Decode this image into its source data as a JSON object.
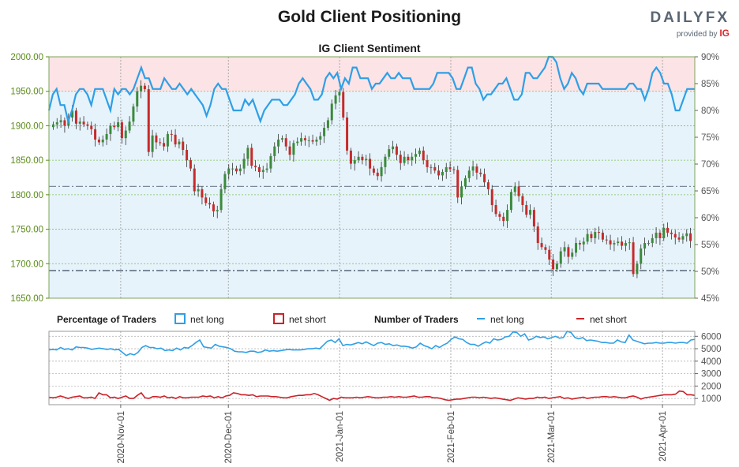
{
  "header": {
    "title": "Gold Client Positioning",
    "subtitle": "IG Client Sentiment",
    "logo_text": "DAILYFX",
    "logo_tagline": "provided by",
    "logo_brand": "IG"
  },
  "colors": {
    "long": "#2f9fe6",
    "short": "#cc2229",
    "price_axis": "#5a8a18",
    "bull_candle": "#3b8a3b",
    "bear_candle": "#c72a2a",
    "long_zone": "#e6f3fb",
    "short_zone": "#fbe3e6"
  },
  "legend": {
    "pct_label": "Percentage of Traders",
    "pct_long": "net long",
    "pct_short": "net short",
    "num_label": "Number of Traders",
    "num_long": "net long",
    "num_short": "net short"
  },
  "chart_data": [
    {
      "type": "candlestick",
      "description_axes": "left: price, right: percent net long",
      "x_ticks": [
        "2020-Nov-01",
        "2020-Dec-01",
        "2021-Jan-01",
        "2021-Feb-01",
        "2021-Mar-01",
        "2021-Apr-01"
      ],
      "y_left_ticks": [
        "1650.00",
        "1700.00",
        "1750.00",
        "1800.00",
        "1850.00",
        "1900.00",
        "1950.00",
        "2000.00"
      ],
      "y_left_range": [
        1650,
        2000
      ],
      "y_right_ticks": [
        "45%",
        "50%",
        "55%",
        "60%",
        "65%",
        "70%",
        "75%",
        "80%",
        "85%",
        "90%"
      ],
      "y_right_range": [
        45,
        90
      ],
      "x_range": [
        "2020-10-12",
        "2021-04-10"
      ],
      "reference_lines": [
        {
          "value": 1812,
          "style": "dash-dot"
        },
        {
          "value": 1690,
          "style": "dash-dot"
        }
      ],
      "price_close": [
        1902,
        1905,
        1908,
        1900,
        1912,
        1922,
        1903,
        1906,
        1902,
        1900,
        1895,
        1880,
        1876,
        1880,
        1888,
        1900,
        1898,
        1905,
        1882,
        1893,
        1906,
        1928,
        1950,
        1958,
        1953,
        1862,
        1886,
        1876,
        1875,
        1870,
        1888,
        1887,
        1873,
        1877,
        1865,
        1850,
        1838,
        1805,
        1808,
        1796,
        1788,
        1786,
        1776,
        1778,
        1808,
        1830,
        1838,
        1838,
        1834,
        1838,
        1852,
        1868,
        1842,
        1840,
        1833,
        1836,
        1838,
        1856,
        1870,
        1880,
        1882,
        1870,
        1858,
        1875,
        1877,
        1882,
        1879,
        1879,
        1877,
        1880,
        1885,
        1897,
        1908,
        1932,
        1944,
        1949,
        1912,
        1864,
        1845,
        1850,
        1855,
        1850,
        1852,
        1838,
        1832,
        1827,
        1840,
        1855,
        1866,
        1870,
        1858,
        1846,
        1855,
        1850,
        1855,
        1859,
        1864,
        1850,
        1840,
        1840,
        1835,
        1828,
        1833,
        1840,
        1837,
        1836,
        1796,
        1812,
        1824,
        1835,
        1841,
        1832,
        1830,
        1818,
        1808,
        1785,
        1772,
        1768,
        1762,
        1778,
        1804,
        1812,
        1798,
        1785,
        1771,
        1778,
        1754,
        1730,
        1724,
        1720,
        1706,
        1692,
        1700,
        1718,
        1724,
        1710,
        1716,
        1730,
        1728,
        1732,
        1743,
        1737,
        1746,
        1745,
        1735,
        1734,
        1728,
        1730,
        1732,
        1726,
        1730,
        1731,
        1685,
        1700,
        1722,
        1730,
        1730,
        1737,
        1745,
        1737,
        1752,
        1745,
        1743,
        1738,
        1735,
        1740,
        1744,
        1733
      ],
      "percent_long": [
        80,
        83,
        84,
        81,
        81,
        78,
        80,
        83,
        84,
        84,
        83,
        81,
        84,
        84,
        84,
        82,
        80,
        84,
        83,
        84,
        84,
        83,
        84,
        86,
        88,
        86,
        86,
        84,
        84,
        84,
        86,
        85,
        84,
        84,
        85,
        84,
        83,
        84,
        83,
        82,
        81,
        79,
        81,
        84,
        85,
        84,
        84,
        82,
        80,
        80,
        80,
        82,
        81,
        82,
        80,
        78,
        80,
        81,
        82,
        82,
        82,
        81,
        81,
        82,
        83,
        85,
        86,
        85,
        84,
        82,
        82,
        83,
        86,
        87,
        86,
        87,
        84,
        86,
        85,
        88,
        88,
        86,
        86,
        86,
        84,
        85,
        85,
        86,
        87,
        86,
        86,
        87,
        86,
        86,
        86,
        84,
        84,
        84,
        84,
        84,
        85,
        87,
        87,
        87,
        87,
        86,
        84,
        84,
        86,
        88,
        88,
        85,
        84,
        82,
        83,
        83,
        84,
        85,
        85,
        86,
        84,
        82,
        82,
        83,
        87,
        87,
        86,
        86,
        87,
        88,
        90,
        90,
        89,
        86,
        84,
        85,
        87,
        86,
        84,
        83,
        85,
        85,
        85,
        85,
        84,
        84,
        84,
        84,
        84,
        84,
        84,
        85,
        85,
        84,
        84,
        82,
        84,
        87,
        88,
        87,
        85,
        85,
        83,
        80,
        80,
        82,
        84,
        84,
        84
      ]
    },
    {
      "type": "line",
      "description_axes": "number of traders",
      "y_ticks": [
        "1000",
        "2000",
        "3000",
        "4000",
        "5000",
        "6000"
      ],
      "y_range": [
        500,
        6400
      ],
      "series": [
        {
          "name": "net long",
          "values": [
            4900,
            4950,
            4900,
            5100,
            4950,
            5000,
            4900,
            5150,
            5100,
            5100,
            5050,
            4950,
            5000,
            5050,
            5000,
            4950,
            5000,
            4900,
            4950,
            4700,
            4450,
            4600,
            4500,
            4700,
            5100,
            5250,
            5100,
            5100,
            5000,
            5050,
            4850,
            4900,
            4850,
            5050,
            4900,
            5100,
            5050,
            5250,
            5500,
            5700,
            5150,
            5100,
            5050,
            5350,
            5200,
            5150,
            5100,
            5000,
            4800,
            4750,
            4750,
            4700,
            4800,
            4800,
            4700,
            4750,
            4900,
            4800,
            4850,
            4800,
            4850,
            4900,
            4950,
            4900,
            4900,
            4900,
            4950,
            5000,
            5000,
            5050,
            5000,
            5300,
            5600,
            5700,
            5500,
            5800,
            5250,
            5350,
            5300,
            5400,
            5500,
            5400,
            5550,
            5400,
            5250,
            5450,
            5500,
            5350,
            5400,
            5250,
            5300,
            5200,
            5200,
            5150,
            5050,
            5150,
            5450,
            5250,
            5150,
            5000,
            5250,
            5100,
            5300,
            5450,
            5750,
            5950,
            5800,
            5750,
            5500,
            5350,
            5350,
            5200,
            5400,
            5550,
            5450,
            5800,
            5700,
            5750,
            5950,
            6000,
            6350,
            6300,
            6000,
            6200,
            5700,
            5800,
            6000,
            5900,
            5950,
            5800,
            5900,
            6000,
            5850,
            5900,
            6400,
            6300,
            5900,
            5800,
            5900,
            5650,
            5700,
            5650,
            5600,
            5500,
            5500,
            5450,
            5450,
            5700,
            5550,
            5500,
            6100,
            5700,
            5600,
            5500,
            5400,
            5450,
            5450,
            5500,
            5450,
            5450,
            5500,
            5500,
            5450,
            5500,
            5500,
            5450,
            5700,
            5750
          ]
        },
        {
          "name": "net short",
          "values": [
            1100,
            1050,
            1100,
            1200,
            1100,
            1000,
            1100,
            1150,
            1200,
            1050,
            1050,
            1100,
            1000,
            1450,
            1300,
            1300,
            1050,
            1100,
            1000,
            1100,
            1200,
            1000,
            1000,
            1250,
            1450,
            1050,
            1000,
            1150,
            1150,
            1100,
            1200,
            1050,
            1100,
            1000,
            1150,
            1050,
            1050,
            1100,
            1100,
            1100,
            1200,
            1150,
            1200,
            1050,
            1150,
            1050,
            1200,
            1250,
            1450,
            1400,
            1300,
            1300,
            1250,
            1300,
            1150,
            1200,
            1200,
            1200,
            1150,
            1150,
            1100,
            1050,
            1050,
            1150,
            1200,
            1250,
            1250,
            1300,
            1300,
            1400,
            1300,
            1150,
            1000,
            850,
            1000,
            950,
            1100,
            1050,
            1050,
            1050,
            1100,
            1050,
            1100,
            1150,
            1100,
            1050,
            1050,
            1100,
            1100,
            1150,
            1100,
            1150,
            1100,
            1100,
            1150,
            1200,
            1100,
            1100,
            1150,
            1150,
            1050,
            1050,
            1000,
            900,
            850,
            900,
            950,
            950,
            1000,
            1050,
            1100,
            1100,
            1050,
            1100,
            1050,
            1000,
            1050,
            1000,
            950,
            900,
            850,
            950,
            1050,
            1000,
            950,
            1000,
            1000,
            1100,
            1050,
            1100,
            1000,
            1050,
            1100,
            1150,
            1000,
            1050,
            950,
            1000,
            1050,
            1100,
            1000,
            1050,
            1100,
            1100,
            1150,
            1150,
            1100,
            1150,
            1100,
            1050,
            1050,
            1150,
            1200,
            1100,
            950,
            1050,
            1100,
            1150,
            1200,
            1250,
            1300,
            1300,
            1300,
            1350,
            1600,
            1550,
            1300,
            1300,
            1250
          ]
        }
      ]
    }
  ]
}
